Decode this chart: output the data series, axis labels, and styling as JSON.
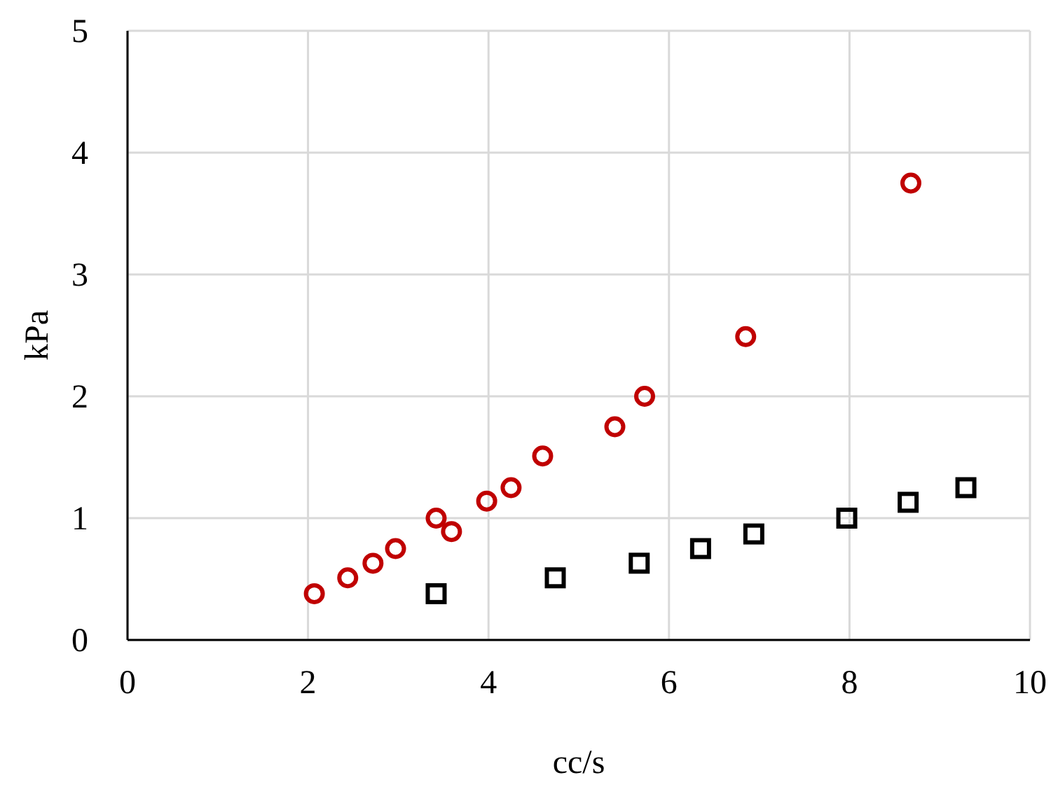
{
  "chart_data": {
    "type": "scatter",
    "xlabel": "cc/s",
    "ylabel": "kPa",
    "xlim": [
      0,
      10
    ],
    "ylim": [
      0,
      5
    ],
    "xticks": [
      0,
      2,
      4,
      6,
      8,
      10
    ],
    "yticks": [
      0,
      1,
      2,
      3,
      4,
      5
    ],
    "grid": true,
    "series": [
      {
        "color": "#c00000",
        "marker": "circle",
        "x": [
          2.07,
          2.44,
          2.72,
          2.97,
          3.42,
          3.59,
          3.98,
          4.25,
          4.6,
          5.4,
          5.73,
          6.85,
          8.68
        ],
        "values": [
          0.38,
          0.51,
          0.63,
          0.75,
          1.0,
          0.89,
          1.14,
          1.25,
          1.51,
          1.75,
          2.0,
          2.49,
          3.75
        ]
      },
      {
        "color": "#000000",
        "marker": "square",
        "x": [
          3.42,
          4.74,
          5.67,
          6.35,
          6.94,
          7.97,
          8.65,
          9.29
        ],
        "values": [
          0.38,
          0.51,
          0.63,
          0.75,
          0.87,
          1.0,
          1.13,
          1.25
        ]
      }
    ]
  }
}
